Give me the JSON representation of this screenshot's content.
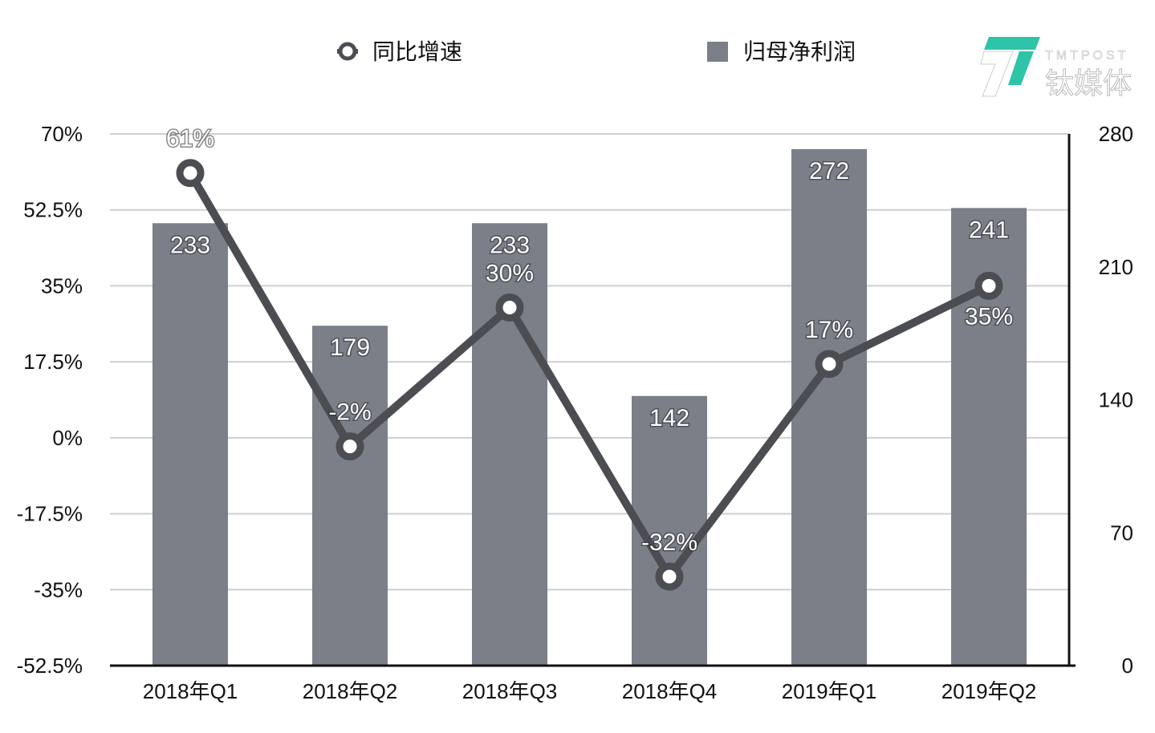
{
  "chart_data": {
    "type": "bar+line",
    "title": "",
    "categories": [
      "2018年Q1",
      "2018年Q2",
      "2018年Q3",
      "2018年Q4",
      "2019年Q1",
      "2019年Q2"
    ],
    "series": [
      {
        "name": "归母净利润",
        "type": "bar",
        "axis": "right",
        "values": [
          233,
          179,
          233,
          142,
          272,
          241
        ],
        "labels": [
          "233",
          "179",
          "233",
          "142",
          "272",
          "241"
        ]
      },
      {
        "name": "同比增速",
        "type": "line",
        "axis": "left",
        "values": [
          61,
          -2,
          30,
          -32,
          17,
          35
        ],
        "labels": [
          "61%",
          "-2%",
          "30%",
          "-32%",
          "17%",
          "35%"
        ]
      }
    ],
    "left_axis": {
      "range": [
        -52.5,
        70
      ],
      "ticks": [
        "70%",
        "52.5%",
        "35%",
        "17.5%",
        "0%",
        "-17.5%",
        "-35%",
        "-52.5%"
      ],
      "tick_values": [
        70,
        52.5,
        35,
        17.5,
        0,
        -17.5,
        -35,
        -52.5
      ]
    },
    "right_axis": {
      "range": [
        0,
        280
      ],
      "ticks": [
        "280",
        "210",
        "140",
        "70",
        "0"
      ],
      "tick_values": [
        280,
        210,
        140,
        70,
        0
      ]
    },
    "grid": true,
    "legend_placement": "top",
    "colors": {
      "bar": "#7b7f88",
      "line": "#4b4d53",
      "grid": "#cfcfcf"
    }
  },
  "legend": {
    "line_label": "同比增速",
    "bar_label": "归母净利润"
  },
  "watermark": {
    "text_en": "TMTPOST",
    "text_cn": "钛媒体",
    "color": "#2ec4a9"
  }
}
